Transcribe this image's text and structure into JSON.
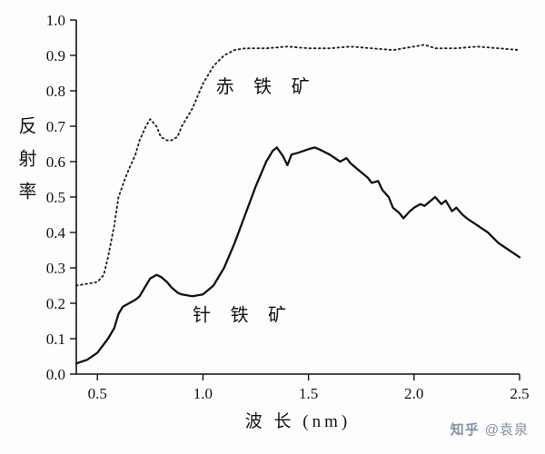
{
  "figure": {
    "background": "#fdfdfd",
    "axis_color": "#111111"
  },
  "watermark": {
    "brand": "知乎",
    "author": "@袁泉",
    "color": "#8590a6"
  },
  "chart_data": {
    "type": "line",
    "title": "",
    "xlabel": "波 长 (nm)",
    "ylabel": "反射率",
    "xlim": [
      0.4,
      2.5
    ],
    "ylim": [
      0,
      1.0
    ],
    "grid": false,
    "legend_position": "none (labels drawn inside plot)",
    "xticks": [
      {
        "v": 0.5,
        "label": "0.5"
      },
      {
        "v": 1.0,
        "label": "1.0"
      },
      {
        "v": 1.5,
        "label": "1.5"
      },
      {
        "v": 2.0,
        "label": "2.0"
      },
      {
        "v": 2.5,
        "label": "2.5"
      }
    ],
    "yticks": [
      {
        "v": 0.0,
        "label": "0.0"
      },
      {
        "v": 0.1,
        "label": "0.1"
      },
      {
        "v": 0.2,
        "label": "0.2"
      },
      {
        "v": 0.3,
        "label": "0.3"
      },
      {
        "v": 0.4,
        "label": "0.4"
      },
      {
        "v": 0.5,
        "label": "0.5"
      },
      {
        "v": 0.6,
        "label": "0.6"
      },
      {
        "v": 0.7,
        "label": "0.7"
      },
      {
        "v": 0.8,
        "label": "0.8"
      },
      {
        "v": 0.9,
        "label": "0.9"
      },
      {
        "v": 1.0,
        "label": "1.0"
      }
    ],
    "series": [
      {
        "name": "赤铁矿",
        "style": "dotted",
        "color": "#222222",
        "x": [
          0.4,
          0.45,
          0.5,
          0.53,
          0.55,
          0.58,
          0.6,
          0.63,
          0.65,
          0.68,
          0.7,
          0.73,
          0.75,
          0.78,
          0.8,
          0.83,
          0.85,
          0.88,
          0.9,
          0.95,
          1.0,
          1.05,
          1.1,
          1.15,
          1.2,
          1.3,
          1.4,
          1.5,
          1.6,
          1.7,
          1.8,
          1.9,
          1.95,
          2.0,
          2.05,
          2.1,
          2.2,
          2.3,
          2.4,
          2.5
        ],
        "y": [
          0.25,
          0.255,
          0.26,
          0.28,
          0.33,
          0.42,
          0.5,
          0.55,
          0.58,
          0.62,
          0.66,
          0.7,
          0.72,
          0.7,
          0.67,
          0.66,
          0.66,
          0.67,
          0.7,
          0.75,
          0.82,
          0.87,
          0.9,
          0.915,
          0.92,
          0.92,
          0.925,
          0.92,
          0.92,
          0.925,
          0.92,
          0.915,
          0.92,
          0.925,
          0.93,
          0.92,
          0.92,
          0.925,
          0.92,
          0.915
        ]
      },
      {
        "name": "针铁矿",
        "style": "solid",
        "color": "#111111",
        "x": [
          0.4,
          0.45,
          0.5,
          0.55,
          0.58,
          0.6,
          0.62,
          0.65,
          0.68,
          0.7,
          0.73,
          0.75,
          0.78,
          0.8,
          0.83,
          0.85,
          0.88,
          0.9,
          0.95,
          1.0,
          1.05,
          1.1,
          1.15,
          1.2,
          1.25,
          1.3,
          1.33,
          1.35,
          1.38,
          1.4,
          1.42,
          1.45,
          1.5,
          1.53,
          1.55,
          1.6,
          1.65,
          1.68,
          1.7,
          1.75,
          1.78,
          1.8,
          1.83,
          1.85,
          1.88,
          1.9,
          1.93,
          1.95,
          1.98,
          2.0,
          2.03,
          2.05,
          2.08,
          2.1,
          2.13,
          2.15,
          2.18,
          2.2,
          2.23,
          2.25,
          2.3,
          2.35,
          2.4,
          2.45,
          2.5
        ],
        "y": [
          0.03,
          0.04,
          0.06,
          0.1,
          0.13,
          0.17,
          0.19,
          0.2,
          0.21,
          0.22,
          0.25,
          0.27,
          0.28,
          0.275,
          0.26,
          0.245,
          0.23,
          0.225,
          0.22,
          0.225,
          0.25,
          0.3,
          0.37,
          0.45,
          0.53,
          0.6,
          0.63,
          0.64,
          0.615,
          0.59,
          0.62,
          0.625,
          0.635,
          0.64,
          0.635,
          0.62,
          0.6,
          0.61,
          0.595,
          0.57,
          0.555,
          0.54,
          0.545,
          0.52,
          0.5,
          0.47,
          0.455,
          0.44,
          0.46,
          0.47,
          0.48,
          0.475,
          0.49,
          0.5,
          0.48,
          0.49,
          0.46,
          0.47,
          0.45,
          0.44,
          0.42,
          0.4,
          0.37,
          0.35,
          0.33
        ]
      }
    ],
    "annotations": [
      {
        "text": "赤 铁 矿",
        "x": 1.3,
        "y": 0.795
      },
      {
        "text": "针 铁 矿",
        "x": 1.19,
        "y": 0.15
      }
    ]
  }
}
